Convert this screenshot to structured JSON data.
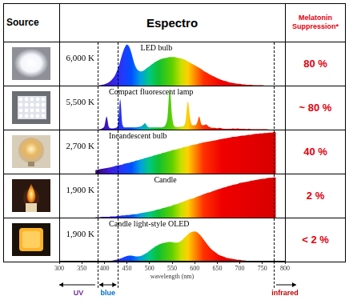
{
  "header": {
    "source": "Source",
    "spectrum": "Espectro",
    "melatonin": "Melatonin Suppression*"
  },
  "rows": [
    {
      "temperature": "6,000 K",
      "melatonin": "80 %"
    },
    {
      "temperature": "5,500 K",
      "melatonin": "~ 80 %"
    },
    {
      "temperature": "2,700 K",
      "melatonin": "40 %"
    },
    {
      "temperature": "1,900 K",
      "melatonin": "2 %"
    },
    {
      "temperature": "1,900 K",
      "melatonin": "< 2 %"
    }
  ],
  "chart_data": {
    "type": "area",
    "xlabel": "wavelength (nm)",
    "x": [
      380,
      385,
      390,
      395,
      400,
      405,
      410,
      415,
      420,
      425,
      430,
      435,
      440,
      445,
      450,
      455,
      460,
      465,
      470,
      475,
      480,
      485,
      490,
      495,
      500,
      505,
      510,
      515,
      520,
      525,
      530,
      535,
      540,
      545,
      550,
      555,
      560,
      565,
      570,
      575,
      580,
      585,
      590,
      595,
      600,
      605,
      610,
      615,
      620,
      625,
      630,
      635,
      640,
      645,
      650,
      655,
      660,
      665,
      670,
      675,
      680,
      685,
      690,
      695,
      700,
      705,
      710,
      715,
      720,
      725,
      730,
      735,
      740,
      745,
      750,
      755,
      760,
      765,
      770,
      775,
      780
    ],
    "series": [
      {
        "name": "LED bulb",
        "values": [
          0,
          0,
          0.01,
          0.02,
          0.03,
          0.05,
          0.08,
          0.12,
          0.18,
          0.27,
          0.4,
          0.56,
          0.74,
          0.88,
          0.95,
          0.9,
          0.75,
          0.56,
          0.42,
          0.35,
          0.33,
          0.34,
          0.37,
          0.41,
          0.45,
          0.49,
          0.53,
          0.56,
          0.59,
          0.61,
          0.63,
          0.64,
          0.65,
          0.66,
          0.66,
          0.66,
          0.65,
          0.64,
          0.63,
          0.61,
          0.59,
          0.56,
          0.53,
          0.5,
          0.47,
          0.44,
          0.41,
          0.38,
          0.34,
          0.31,
          0.28,
          0.25,
          0.22,
          0.2,
          0.17,
          0.15,
          0.13,
          0.11,
          0.1,
          0.08,
          0.07,
          0.06,
          0.05,
          0.04,
          0.04,
          0.03,
          0.03,
          0.02,
          0.02,
          0.02,
          0.01,
          0.01,
          0.01,
          0.01,
          0.01,
          0,
          0,
          0,
          0,
          0,
          0
        ]
      },
      {
        "name": "Compact fluorescent lamp",
        "values": [
          0,
          0,
          0.01,
          0.03,
          0.08,
          0.3,
          0.06,
          0.03,
          0.03,
          0.04,
          0.1,
          0.7,
          0.12,
          0.05,
          0.05,
          0.05,
          0.05,
          0.05,
          0.05,
          0.06,
          0.07,
          0.1,
          0.15,
          0.08,
          0.05,
          0.05,
          0.05,
          0.05,
          0.05,
          0.05,
          0.06,
          0.1,
          0.3,
          0.95,
          0.3,
          0.08,
          0.06,
          0.06,
          0.07,
          0.08,
          0.2,
          0.65,
          0.25,
          0.1,
          0.1,
          0.15,
          0.3,
          0.12,
          0.1,
          0.12,
          0.08,
          0.05,
          0.04,
          0.04,
          0.03,
          0.04,
          0.03,
          0.02,
          0.02,
          0.02,
          0.02,
          0.03,
          0.02,
          0.03,
          0.02,
          0.02,
          0.02,
          0.01,
          0.02,
          0.01,
          0.01,
          0.01,
          0.01,
          0.01,
          0.01,
          0.01,
          0.01,
          0,
          0,
          0,
          0
        ]
      },
      {
        "name": "Incandescent bulb",
        "values": [
          0.08,
          0.09,
          0.1,
          0.11,
          0.12,
          0.13,
          0.14,
          0.15,
          0.16,
          0.18,
          0.19,
          0.2,
          0.21,
          0.23,
          0.24,
          0.25,
          0.27,
          0.28,
          0.3,
          0.31,
          0.33,
          0.34,
          0.36,
          0.37,
          0.39,
          0.4,
          0.42,
          0.43,
          0.45,
          0.46,
          0.48,
          0.49,
          0.51,
          0.52,
          0.54,
          0.55,
          0.56,
          0.58,
          0.59,
          0.61,
          0.62,
          0.63,
          0.65,
          0.66,
          0.67,
          0.68,
          0.7,
          0.71,
          0.72,
          0.73,
          0.74,
          0.75,
          0.76,
          0.77,
          0.78,
          0.79,
          0.8,
          0.81,
          0.82,
          0.83,
          0.84,
          0.85,
          0.85,
          0.86,
          0.87,
          0.88,
          0.88,
          0.89,
          0.9,
          0.9,
          0.91,
          0.92,
          0.92,
          0.93,
          0.93,
          0.94,
          0.94,
          0.95,
          0.95,
          0.96,
          0.96
        ]
      },
      {
        "name": "Candle",
        "values": [
          0.01,
          0.01,
          0.01,
          0.02,
          0.02,
          0.02,
          0.02,
          0.03,
          0.03,
          0.03,
          0.04,
          0.04,
          0.05,
          0.05,
          0.06,
          0.06,
          0.07,
          0.08,
          0.08,
          0.09,
          0.1,
          0.11,
          0.12,
          0.13,
          0.14,
          0.15,
          0.16,
          0.18,
          0.19,
          0.2,
          0.22,
          0.23,
          0.25,
          0.26,
          0.28,
          0.3,
          0.31,
          0.33,
          0.35,
          0.37,
          0.39,
          0.41,
          0.43,
          0.44,
          0.46,
          0.48,
          0.5,
          0.52,
          0.54,
          0.56,
          0.58,
          0.59,
          0.61,
          0.63,
          0.65,
          0.66,
          0.68,
          0.7,
          0.71,
          0.73,
          0.74,
          0.76,
          0.77,
          0.78,
          0.8,
          0.81,
          0.82,
          0.83,
          0.84,
          0.85,
          0.86,
          0.87,
          0.88,
          0.89,
          0.9,
          0.9,
          0.91,
          0.92,
          0.92,
          0.93,
          0.93
        ]
      },
      {
        "name": "Candle light-style OLED",
        "values": [
          0,
          0,
          0,
          0,
          0.01,
          0.01,
          0.02,
          0.02,
          0.03,
          0.04,
          0.05,
          0.07,
          0.09,
          0.11,
          0.13,
          0.14,
          0.14,
          0.13,
          0.12,
          0.12,
          0.13,
          0.15,
          0.18,
          0.21,
          0.25,
          0.29,
          0.33,
          0.36,
          0.39,
          0.41,
          0.43,
          0.44,
          0.45,
          0.46,
          0.45,
          0.44,
          0.44,
          0.45,
          0.48,
          0.53,
          0.58,
          0.63,
          0.67,
          0.69,
          0.7,
          0.68,
          0.64,
          0.58,
          0.51,
          0.44,
          0.37,
          0.31,
          0.26,
          0.22,
          0.18,
          0.15,
          0.13,
          0.11,
          0.09,
          0.08,
          0.07,
          0.06,
          0.05,
          0.04,
          0.04,
          0.03,
          0.03,
          0.02,
          0.02,
          0.02,
          0.01,
          0.01,
          0.01,
          0.01,
          0.01,
          0,
          0,
          0,
          0,
          0,
          0
        ]
      }
    ],
    "xlim": [
      300,
      800
    ],
    "xticks": [
      300,
      350,
      400,
      450,
      500,
      550,
      600,
      650,
      700,
      750,
      800
    ],
    "ylim": [
      0,
      1
    ],
    "tick_labels": "x",
    "grid": false,
    "region_bounds": [
      385,
      430,
      775
    ],
    "region_labels": [
      "UV",
      "blue",
      "infrared"
    ]
  }
}
